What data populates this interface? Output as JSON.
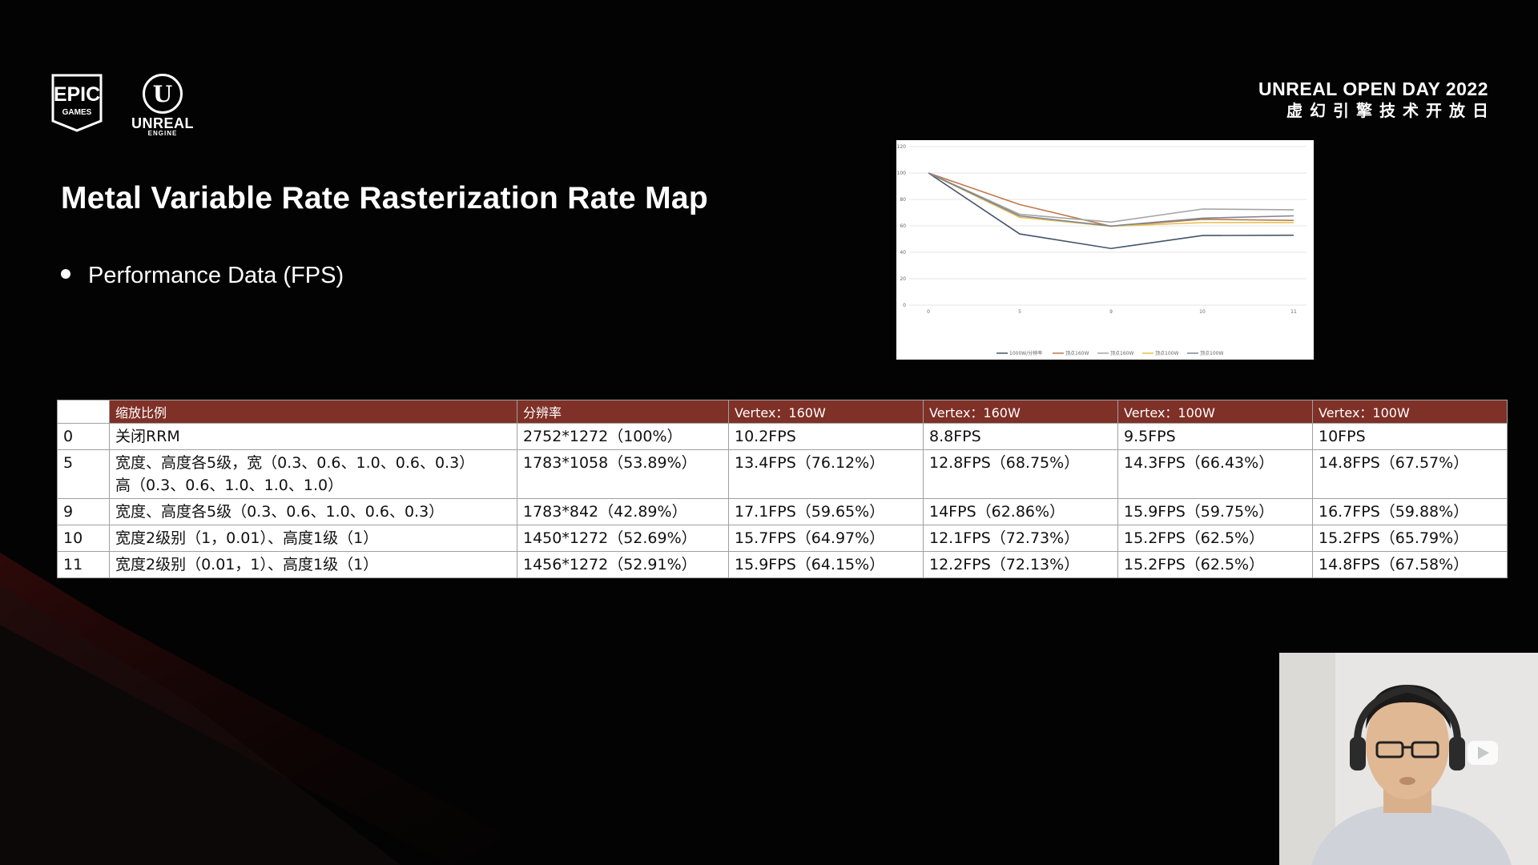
{
  "branding": {
    "epic_line1": "EPIC",
    "epic_line2": "GAMES",
    "ue_glyph": "U",
    "ue_word": "UNREAL",
    "ue_sub": "ENGINE",
    "event_en": "UNREAL OPEN DAY 2022",
    "event_cn": "虚幻引擎技术开放日"
  },
  "slide": {
    "title": "Metal Variable Rate Rasterization Rate Map",
    "bullet": "Performance Data (FPS)"
  },
  "chart_data": {
    "type": "line",
    "categories": [
      "0",
      "5",
      "9",
      "10",
      "11"
    ],
    "ylim": [
      0,
      120
    ],
    "yticks": [
      "0",
      "20",
      "40",
      "60",
      "80",
      "100",
      "120"
    ],
    "series": [
      {
        "name": "1000W/分辨率",
        "color": "#44546a",
        "values": [
          100,
          53.89,
          42.89,
          52.69,
          52.91
        ]
      },
      {
        "name": "顶点160W",
        "color": "#c0794b",
        "values": [
          100,
          76.12,
          59.65,
          64.97,
          64.15
        ]
      },
      {
        "name": "顶点160W",
        "color": "#a5a5a5",
        "values": [
          100,
          68.75,
          62.86,
          72.73,
          72.13
        ]
      },
      {
        "name": "顶点100W",
        "color": "#e3c14b",
        "values": [
          100,
          66.43,
          59.75,
          62.5,
          62.5
        ]
      },
      {
        "name": "顶点100W",
        "color": "#7d8596",
        "values": [
          100,
          67.57,
          59.88,
          65.79,
          67.58
        ]
      }
    ]
  },
  "table": {
    "headers": [
      "",
      "缩放比例",
      "分辨率",
      "Vertex：160W",
      "Vertex：160W",
      "Vertex：100W",
      "Vertex：100W"
    ],
    "rows": [
      [
        "0",
        "关闭RRM",
        "2752*1272（100%）",
        "10.2FPS",
        "8.8FPS",
        "9.5FPS",
        "10FPS"
      ],
      [
        "5",
        "宽度、高度各5级，宽（0.3、0.6、1.0、0.6、0.3）\n高（0.3、0.6、1.0、1.0、1.0）",
        "1783*1058（53.89%）",
        "13.4FPS（76.12%）",
        "12.8FPS（68.75%）",
        "14.3FPS（66.43%）",
        "14.8FPS（67.57%）"
      ],
      [
        "9",
        "宽度、高度各5级（0.3、0.6、1.0、0.6、0.3）",
        "1783*842（42.89%）",
        "17.1FPS（59.65%）",
        "14FPS（62.86%）",
        "15.9FPS（59.75%）",
        "16.7FPS（59.88%）"
      ],
      [
        "10",
        "宽度2级别（1，0.01）、高度1级（1）",
        "1450*1272（52.69%）",
        "15.7FPS（64.97%）",
        "12.1FPS（72.73%）",
        "15.2FPS（62.5%）",
        "15.2FPS（65.79%）"
      ],
      [
        "11",
        "宽度2级别（0.01，1）、高度1级（1）",
        "1456*1272（52.91%）",
        "15.9FPS（64.15%）",
        "12.2FPS（72.13%）",
        "15.2FPS（62.5%）",
        "14.8FPS（67.58%）"
      ]
    ]
  },
  "colors": {
    "background": "#030303",
    "table_header": "#7f3027",
    "accent_stripe": "#8a1f1f"
  }
}
